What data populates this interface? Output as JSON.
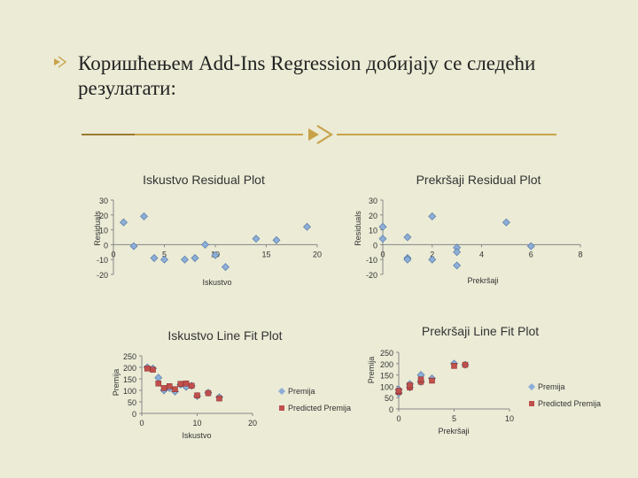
{
  "slide": {
    "bullet_text_line1": "Коришћењем Add-Ins Regression добијају се следећи",
    "bullet_text_line2": "резулатати:",
    "accent_color": "#c8a24a",
    "background_color": "#ebebd6"
  },
  "chart_data": [
    {
      "type": "scatter",
      "title": "Iskustvo  Residual Plot",
      "xlabel": "Iskustvo",
      "ylabel": "Residuals",
      "xlim": [
        0,
        20
      ],
      "ylim": [
        -20,
        30
      ],
      "xticks": [
        0,
        5,
        10,
        15,
        20
      ],
      "yticks": [
        -20,
        -10,
        0,
        10,
        20,
        30
      ],
      "series": [
        {
          "name": "Residuals",
          "color": "#8caed8",
          "x": [
            1,
            2,
            3,
            4,
            5,
            7,
            8,
            9,
            10,
            11,
            14,
            16,
            19
          ],
          "y": [
            15,
            -1,
            19,
            -9,
            -10,
            -10,
            -9,
            0,
            -7,
            -15,
            4,
            3,
            12
          ]
        }
      ]
    },
    {
      "type": "scatter",
      "title": "Prekršaji  Residual Plot",
      "xlabel": "Prekršaji",
      "ylabel": "Residuals",
      "xlim": [
        0,
        8
      ],
      "ylim": [
        -20,
        30
      ],
      "xticks": [
        0,
        2,
        4,
        6,
        8
      ],
      "yticks": [
        -20,
        -10,
        0,
        10,
        20,
        30
      ],
      "series": [
        {
          "name": "Residuals",
          "color": "#8caed8",
          "x": [
            0,
            0,
            1,
            1,
            1,
            2,
            2,
            3,
            3,
            3,
            5,
            6
          ],
          "y": [
            12,
            4,
            5,
            -9,
            -10,
            19,
            -10,
            -2,
            -5,
            -14,
            15,
            -1
          ]
        }
      ]
    },
    {
      "type": "scatter",
      "title": "Iskustvo Line Fit  Plot",
      "xlabel": "Iskustvo",
      "ylabel": "Premija",
      "xlim": [
        0,
        20
      ],
      "ylim": [
        0,
        250
      ],
      "xticks": [
        0,
        10,
        20
      ],
      "yticks": [
        0,
        50,
        100,
        150,
        200,
        250
      ],
      "legend": "right",
      "series": [
        {
          "name": "Premija",
          "color": "#8caed8",
          "marker": "diamond",
          "x": [
            1,
            2,
            3,
            4,
            5,
            6,
            7,
            8,
            9,
            10,
            12,
            14
          ],
          "y": [
            200,
            195,
            155,
            100,
            110,
            95,
            125,
            115,
            120,
            75,
            90,
            70
          ]
        },
        {
          "name": "Predicted Premija",
          "color": "#c0504d",
          "marker": "square",
          "x": [
            1,
            2,
            3,
            4,
            5,
            6,
            7,
            8,
            9,
            10,
            12,
            14
          ],
          "y": [
            195,
            190,
            130,
            110,
            118,
            105,
            128,
            130,
            120,
            78,
            88,
            65
          ]
        }
      ]
    },
    {
      "type": "scatter",
      "title": "Prekršaji Line Fit  Plot",
      "xlabel": "Prekršaji",
      "ylabel": "Premija",
      "xlim": [
        0,
        10
      ],
      "ylim": [
        0,
        250
      ],
      "xticks": [
        0,
        5,
        10
      ],
      "yticks": [
        0,
        50,
        100,
        150,
        200,
        250
      ],
      "legend": "right",
      "series": [
        {
          "name": "Premija",
          "color": "#8caed8",
          "marker": "diamond",
          "x": [
            0,
            0,
            1,
            1,
            2,
            2,
            3,
            5,
            6
          ],
          "y": [
            85,
            70,
            110,
            95,
            150,
            120,
            135,
            200,
            195
          ]
        },
        {
          "name": "Predicted Premija",
          "color": "#c0504d",
          "marker": "square",
          "x": [
            0,
            0,
            1,
            1,
            2,
            2,
            3,
            5,
            6
          ],
          "y": [
            75,
            80,
            95,
            105,
            120,
            130,
            125,
            190,
            195
          ]
        }
      ]
    }
  ]
}
